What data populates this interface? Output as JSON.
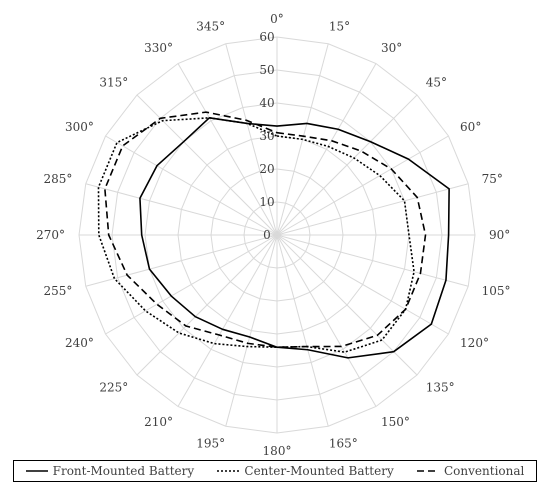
{
  "chart_data": {
    "type": "radar",
    "angles": [
      0,
      15,
      30,
      45,
      60,
      75,
      90,
      105,
      120,
      135,
      150,
      165,
      180,
      195,
      210,
      225,
      240,
      255,
      270,
      285,
      300,
      315,
      330,
      345
    ],
    "angle_labels": [
      "0°",
      "15°",
      "30°",
      "45°",
      "60°",
      "75°",
      "90°",
      "105°",
      "120°",
      "135°",
      "150°",
      "165°",
      "180°",
      "195°",
      "210°",
      "225°",
      "240°",
      "255°",
      "270°",
      "285°",
      "300°",
      "315°",
      "330°",
      "345°"
    ],
    "radial_ticks": [
      0,
      10,
      20,
      30,
      40,
      50,
      60
    ],
    "radial_tick_labels": [
      "0",
      "10",
      "20",
      "30",
      "40",
      "50",
      "60"
    ],
    "rlim": [
      0,
      60
    ],
    "grid": true,
    "legend_position": "bottom",
    "series": [
      {
        "name": "Front-Mounted Battery",
        "dash": "solid",
        "values": [
          33,
          35,
          37,
          40,
          46,
          54,
          52,
          53,
          54,
          50,
          43,
          36,
          34,
          32,
          33,
          35,
          37,
          40,
          41,
          43,
          42,
          40,
          41,
          35
        ]
      },
      {
        "name": "Center-Mounted Battery",
        "dash": "dotted",
        "values": [
          30,
          30,
          31,
          33,
          36,
          40,
          40,
          43,
          45,
          45,
          41,
          35,
          34,
          35,
          38,
          42,
          46,
          51,
          54,
          56,
          56,
          49,
          41,
          35
        ]
      },
      {
        "name": "Conventional",
        "dash": "dashed",
        "values": [
          31,
          31,
          33,
          36,
          40,
          44,
          45,
          45,
          45,
          43,
          39,
          35,
          34,
          34,
          35,
          39,
          42,
          47,
          51,
          54,
          54,
          50,
          43,
          36
        ]
      }
    ]
  },
  "legend": {
    "items": [
      {
        "label": "Front-Mounted Battery",
        "dash": "solid"
      },
      {
        "label": "Center-Mounted Battery",
        "dash": "dotted"
      },
      {
        "label": "Conventional",
        "dash": "dashed"
      }
    ]
  }
}
